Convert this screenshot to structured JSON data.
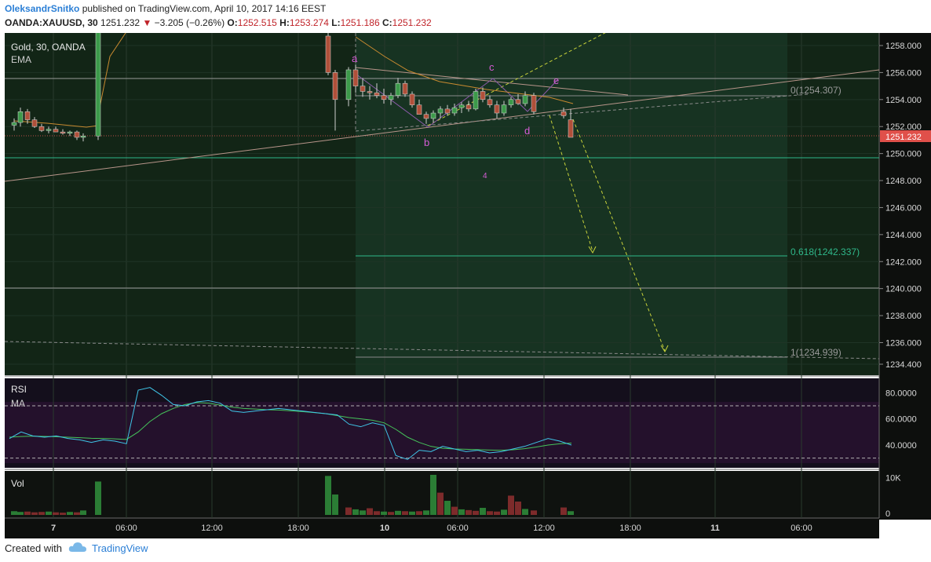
{
  "header": {
    "author": "OleksandrSnitko",
    "published_text": "published on TradingView.com, April 10, 2017 14:16 EEST",
    "symbol": "OANDA:XAUUSD, 30",
    "last": "1251.232",
    "change": "−3.205 (−0.26%)",
    "ohlc": {
      "o_label": "O:",
      "o": "1252.515",
      "h_label": "H:",
      "h": "1253.274",
      "l_label": "L:",
      "l": "1251.186",
      "c_label": "C:",
      "c": "1251.232"
    }
  },
  "legend": {
    "title": "Gold, 30, OANDA",
    "ema": "EMA"
  },
  "colors": {
    "bg": "#0f1f14",
    "bg_dark": "#111611",
    "up": "#3c9a4a",
    "down": "#b0503a",
    "rsi_line": "#3fc6e8",
    "rsi_ma": "#45c45a",
    "pattern": "#d65cd6",
    "fib": "#2fb88a",
    "proj": "#c8d23a",
    "price_badge": "#e0504a"
  },
  "price_axis": {
    "ticks": [
      "1258.000",
      "1256.000",
      "1254.000",
      "1252.000",
      "1250.000",
      "1248.000",
      "1246.000",
      "1244.000",
      "1242.000",
      "1240.000",
      "1238.000",
      "1236.000",
      "1234.400"
    ],
    "current": "1251.232"
  },
  "rsi_axis": {
    "ticks": [
      "80.0000",
      "60.0000",
      "40.0000"
    ]
  },
  "vol_axis": {
    "ticks": [
      "10K",
      "0"
    ]
  },
  "time_axis": {
    "ticks": [
      "7",
      "06:00",
      "12:00",
      "18:00",
      "10",
      "06:00",
      "12:00",
      "18:00",
      "11",
      "06:00"
    ]
  },
  "panes": {
    "rsi_label": "RSI",
    "rsi_ma_label": "MA",
    "vol_label": "Vol"
  },
  "annotations": {
    "a": "a",
    "b": "b",
    "c": "c",
    "d": "d",
    "e": "e",
    "four": "4",
    "fib0": "0(1254.307)",
    "fib618": "0.618(1242.337)",
    "fib1": "1(1234.939)"
  },
  "chart_data": {
    "type": "candlestick",
    "title": "Gold, 30, OANDA",
    "ylim": [
      1233.8,
      1259.2
    ],
    "candles": [
      {
        "o": 1252.1,
        "h": 1252.6,
        "l": 1251.7,
        "c": 1252.3
      },
      {
        "o": 1252.3,
        "h": 1253.4,
        "l": 1252.0,
        "c": 1253.1
      },
      {
        "o": 1253.1,
        "h": 1253.3,
        "l": 1252.2,
        "c": 1252.5
      },
      {
        "o": 1252.5,
        "h": 1252.7,
        "l": 1251.9,
        "c": 1252.0
      },
      {
        "o": 1252.0,
        "h": 1252.2,
        "l": 1251.6,
        "c": 1251.7
      },
      {
        "o": 1251.7,
        "h": 1252.0,
        "l": 1251.5,
        "c": 1251.8
      },
      {
        "o": 1251.8,
        "h": 1252.0,
        "l": 1251.6,
        "c": 1251.6
      },
      {
        "o": 1251.6,
        "h": 1251.8,
        "l": 1251.4,
        "c": 1251.5
      },
      {
        "o": 1251.5,
        "h": 1251.7,
        "l": 1251.3,
        "c": 1251.6
      },
      {
        "o": 1251.6,
        "h": 1251.7,
        "l": 1251.0,
        "c": 1251.2
      },
      {
        "o": 1251.2,
        "h": 1251.5,
        "l": 1250.9,
        "c": 1251.3
      },
      {
        "o": 1251.3,
        "h": 1259.2,
        "l": 1251.0,
        "c": 1259.0
      },
      {
        "o": 1258.7,
        "h": 1259.0,
        "l": 1255.8,
        "c": 1256.0
      },
      {
        "o": 1256.0,
        "h": 1256.2,
        "l": 1251.7,
        "c": 1254.0
      },
      {
        "o": 1254.0,
        "h": 1256.4,
        "l": 1253.5,
        "c": 1256.2
      },
      {
        "o": 1256.2,
        "h": 1256.6,
        "l": 1254.5,
        "c": 1255.0
      },
      {
        "o": 1255.0,
        "h": 1255.6,
        "l": 1254.2,
        "c": 1254.6
      },
      {
        "o": 1254.6,
        "h": 1255.0,
        "l": 1254.0,
        "c": 1254.5
      },
      {
        "o": 1254.5,
        "h": 1255.2,
        "l": 1254.1,
        "c": 1254.3
      },
      {
        "o": 1254.3,
        "h": 1254.8,
        "l": 1253.7,
        "c": 1254.0
      },
      {
        "o": 1254.0,
        "h": 1254.5,
        "l": 1253.6,
        "c": 1254.3
      },
      {
        "o": 1254.3,
        "h": 1255.6,
        "l": 1254.1,
        "c": 1255.2
      },
      {
        "o": 1255.2,
        "h": 1255.4,
        "l": 1254.2,
        "c": 1254.4
      },
      {
        "o": 1254.4,
        "h": 1254.6,
        "l": 1253.4,
        "c": 1253.6
      },
      {
        "o": 1253.6,
        "h": 1254.0,
        "l": 1253.0,
        "c": 1252.9
      },
      {
        "o": 1252.9,
        "h": 1253.1,
        "l": 1252.2,
        "c": 1252.6
      },
      {
        "o": 1252.6,
        "h": 1253.2,
        "l": 1252.3,
        "c": 1253.0
      },
      {
        "o": 1253.0,
        "h": 1253.5,
        "l": 1252.6,
        "c": 1253.3
      },
      {
        "o": 1253.3,
        "h": 1253.6,
        "l": 1252.8,
        "c": 1253.0
      },
      {
        "o": 1253.0,
        "h": 1253.7,
        "l": 1252.8,
        "c": 1253.4
      },
      {
        "o": 1253.4,
        "h": 1253.8,
        "l": 1253.0,
        "c": 1253.6
      },
      {
        "o": 1253.6,
        "h": 1253.9,
        "l": 1253.1,
        "c": 1253.3
      },
      {
        "o": 1253.3,
        "h": 1254.8,
        "l": 1253.2,
        "c": 1254.6
      },
      {
        "o": 1254.6,
        "h": 1254.9,
        "l": 1253.8,
        "c": 1254.0
      },
      {
        "o": 1254.0,
        "h": 1254.3,
        "l": 1253.4,
        "c": 1253.6
      },
      {
        "o": 1253.6,
        "h": 1253.9,
        "l": 1252.6,
        "c": 1253.0
      },
      {
        "o": 1253.0,
        "h": 1253.9,
        "l": 1252.8,
        "c": 1253.6
      },
      {
        "o": 1253.6,
        "h": 1254.2,
        "l": 1253.4,
        "c": 1254.0
      },
      {
        "o": 1254.0,
        "h": 1254.4,
        "l": 1253.6,
        "c": 1253.7
      },
      {
        "o": 1253.7,
        "h": 1254.6,
        "l": 1253.5,
        "c": 1254.3
      },
      {
        "o": 1254.3,
        "h": 1254.5,
        "l": 1252.9,
        "c": 1253.1
      },
      {
        "o": 1253.1,
        "h": 1253.4,
        "l": 1252.6,
        "c": 1252.8
      },
      {
        "o": 1252.5,
        "h": 1253.3,
        "l": 1251.2,
        "c": 1251.2
      }
    ],
    "candle_x": [
      18,
      26,
      35,
      44,
      53,
      62,
      71,
      80,
      89,
      98,
      106,
      125,
      418,
      427,
      444,
      453,
      462,
      471,
      480,
      489,
      498,
      507,
      516,
      525,
      534,
      543,
      552,
      561,
      570,
      579,
      588,
      597,
      606,
      615,
      624,
      633,
      642,
      651,
      660,
      669,
      680,
      718,
      727
    ],
    "rsi": [
      45,
      50,
      47,
      46,
      47,
      45,
      44,
      42,
      44,
      43,
      41,
      82,
      84,
      78,
      71,
      70,
      73,
      74,
      72,
      66,
      65,
      66,
      67,
      68,
      67,
      66,
      65,
      64,
      63,
      56,
      54,
      57,
      55,
      32,
      29,
      36,
      35,
      39,
      37,
      35,
      36,
      34,
      35,
      37,
      39,
      42,
      45,
      43,
      40
    ],
    "rsi_ma": [
      46,
      46.5,
      46.8,
      46.6,
      46.4,
      46,
      45.6,
      45.2,
      45,
      44.7,
      44.3,
      50,
      58,
      64,
      68,
      71,
      72.5,
      72,
      70.5,
      69,
      68,
      67.5,
      67,
      66.8,
      66.2,
      65.6,
      64.8,
      64,
      62.5,
      61,
      60,
      59,
      57,
      52,
      46,
      42,
      39,
      37.5,
      37,
      36.8,
      36.5,
      36.2,
      36,
      36.4,
      37.2,
      38.5,
      40,
      41,
      41.5
    ],
    "volume": [
      1000,
      800,
      900,
      700,
      800,
      900,
      700,
      600,
      800,
      700,
      1200,
      9000,
      10500,
      5500,
      2000,
      1500,
      1200,
      1800,
      1000,
      900,
      800,
      1100,
      1000,
      900,
      1000,
      1200,
      10800,
      6000,
      3800,
      2200,
      1500,
      1300,
      1100,
      1900,
      1000,
      900,
      1400,
      5200,
      3600,
      1600,
      1200,
      2000,
      1000
    ],
    "vol_up": [
      1,
      1,
      0,
      0,
      0,
      1,
      0,
      0,
      1,
      0,
      1,
      1,
      1,
      1,
      0,
      1,
      1,
      0,
      0,
      1,
      0,
      1,
      0,
      1,
      0,
      1,
      1,
      0,
      1,
      0,
      1,
      0,
      0,
      1,
      0,
      0,
      1,
      0,
      0,
      1,
      0,
      0,
      1
    ]
  }
}
